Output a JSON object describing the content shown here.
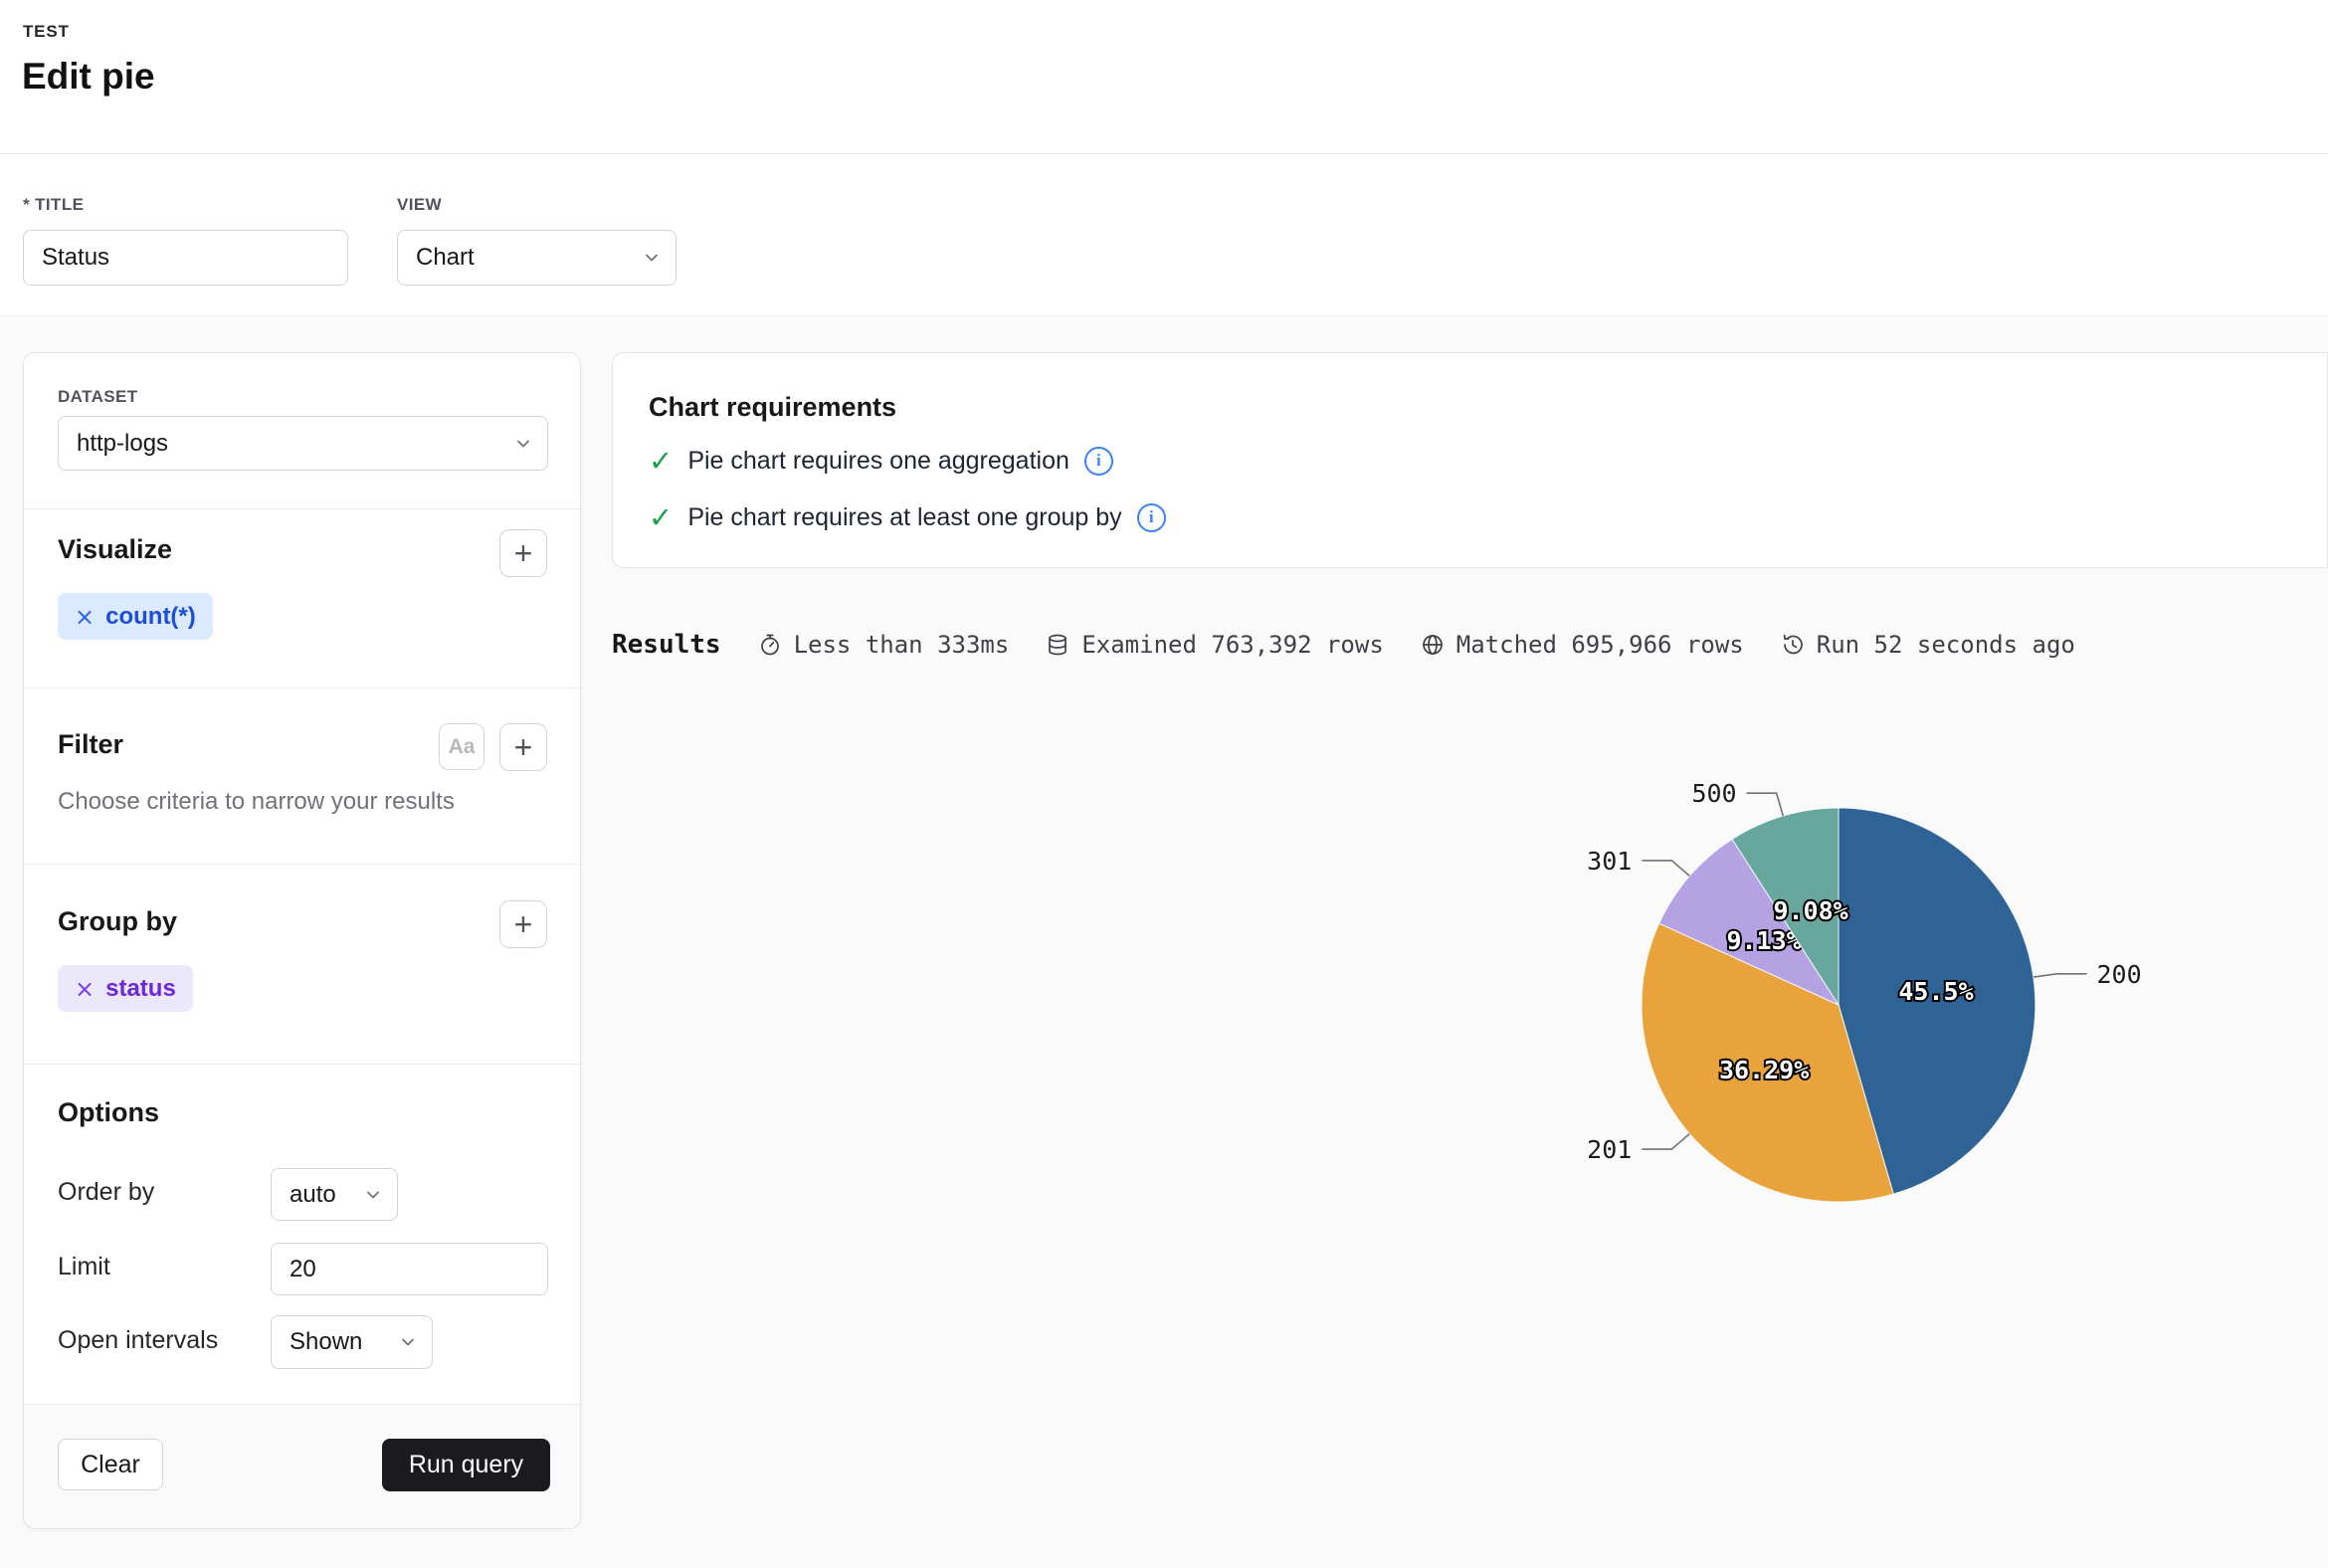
{
  "header": {
    "breadcrumb": "TEST",
    "title": "Edit pie"
  },
  "form": {
    "title_label": "* TITLE",
    "title_value": "Status",
    "view_label": "VIEW",
    "view_value": "Chart"
  },
  "icons": {
    "plus": "+",
    "close": "×",
    "check": "✓",
    "info": "i",
    "aa": "Aa"
  },
  "panel": {
    "dataset_label": "DATASET",
    "dataset_value": "http-logs",
    "visualize": {
      "title": "Visualize",
      "chip": "count(*)"
    },
    "filter": {
      "title": "Filter",
      "placeholder": "Choose criteria to narrow your results"
    },
    "group_by": {
      "title": "Group by",
      "chip": "status"
    },
    "options": {
      "title": "Options",
      "order_by_label": "Order by",
      "order_by_value": "auto",
      "limit_label": "Limit",
      "limit_value": "20",
      "open_intervals_label": "Open intervals",
      "open_intervals_value": "Shown"
    },
    "footer": {
      "clear_label": "Clear",
      "run_label": "Run query"
    }
  },
  "requirements": {
    "title": "Chart requirements",
    "items": [
      {
        "text": "Pie chart requires one aggregation"
      },
      {
        "text": "Pie chart requires at least one group by"
      }
    ]
  },
  "results": {
    "label": "Results",
    "stats": [
      {
        "icon": "timer-icon",
        "text": "Less than 333ms"
      },
      {
        "icon": "database-icon",
        "text": "Examined 763,392 rows"
      },
      {
        "icon": "globe-icon",
        "text": "Matched 695,966 rows"
      },
      {
        "icon": "history-icon",
        "text": "Run 52 seconds ago"
      }
    ]
  },
  "chart_data": {
    "type": "pie",
    "title": "count(*) by status",
    "legend_position": "none",
    "start_angle_deg": 0,
    "direction": "clockwise",
    "slices": [
      {
        "label": "200",
        "pct": 45.5,
        "pct_label": "45.5%",
        "color": "#2f6295"
      },
      {
        "label": "201",
        "pct": 36.29,
        "pct_label": "36.29%",
        "color": "#e8a33d"
      },
      {
        "label": "301",
        "pct": 9.13,
        "pct_label": "9.13%",
        "color": "#b4a2e2"
      },
      {
        "label": "500",
        "pct": 9.08,
        "pct_label": "9.08%",
        "color": "#68a79e"
      }
    ]
  }
}
